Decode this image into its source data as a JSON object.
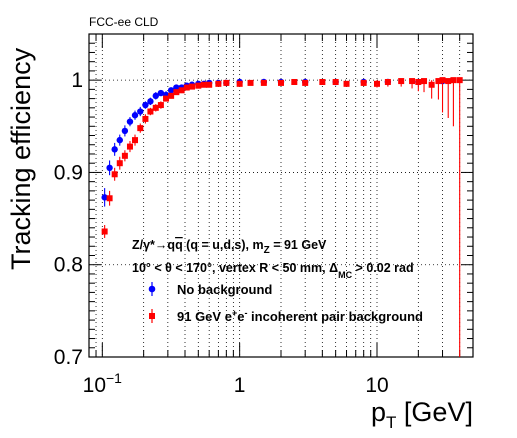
{
  "figure": {
    "experiment_label": "FCC-ee CLD",
    "ylabel": "Tracking efficiency",
    "xlabel": "p_T [GeV]",
    "annotations": [
      "Z/γ*→qq̄ (q = u,d,s), m_Z = 91 GeV",
      "10° < θ < 170°, vertex R < 50 mm, Δ_MC > 0.02 rad"
    ]
  },
  "chart_data": {
    "type": "scatter",
    "x_scale": "log",
    "xlim": [
      0.08,
      50
    ],
    "ylim": [
      0.7,
      1.05
    ],
    "x_ticks": [
      {
        "value": 0.1,
        "label": "10^-1"
      },
      {
        "value": 1,
        "label": "1"
      },
      {
        "value": 10,
        "label": "10"
      }
    ],
    "y_ticks": [
      0.7,
      0.8,
      0.9,
      1.0
    ],
    "y_tick_labels": [
      "0.7",
      "0.8",
      "0.9",
      "1"
    ],
    "grid": true,
    "legend_position": "bottom-center",
    "series": [
      {
        "name": "No background",
        "color": "#0000ff",
        "marker": "circle",
        "x": [
          0.104,
          0.113,
          0.123,
          0.134,
          0.146,
          0.159,
          0.173,
          0.189,
          0.206,
          0.224,
          0.245,
          0.267,
          0.291,
          0.317,
          0.346,
          0.378,
          0.412,
          0.45,
          0.5,
          0.55,
          0.6,
          0.7,
          0.8,
          1.0,
          1.5,
          2.0,
          3.0,
          5.0,
          8.0,
          12.0,
          20.0,
          30.0
        ],
        "y": [
          0.873,
          0.905,
          0.925,
          0.935,
          0.945,
          0.955,
          0.962,
          0.966,
          0.973,
          0.977,
          0.983,
          0.986,
          0.984,
          0.989,
          0.992,
          0.992,
          0.994,
          0.995,
          0.996,
          0.996,
          0.997,
          0.997,
          0.997,
          0.998,
          0.998,
          0.998,
          0.998,
          0.998,
          0.998,
          0.998,
          0.998,
          0.999
        ],
        "err": [
          0.01,
          0.008,
          0.007,
          0.006,
          0.006,
          0.005,
          0.005,
          0.005,
          0.004,
          0.004,
          0.004,
          0.003,
          0.004,
          0.003,
          0.003,
          0.003,
          0.002,
          0.002,
          0.002,
          0.002,
          0.002,
          0.002,
          0.002,
          0.001,
          0.001,
          0.001,
          0.001,
          0.001,
          0.001,
          0.002,
          0.002,
          0.002
        ]
      },
      {
        "name": "91 GeV e+e- incoherent pair background",
        "color": "#ff0000",
        "marker": "square",
        "x": [
          0.104,
          0.113,
          0.123,
          0.134,
          0.146,
          0.159,
          0.173,
          0.189,
          0.206,
          0.224,
          0.245,
          0.267,
          0.291,
          0.317,
          0.346,
          0.378,
          0.412,
          0.45,
          0.5,
          0.55,
          0.6,
          0.7,
          0.8,
          1.0,
          1.2,
          1.5,
          2.0,
          2.5,
          3.0,
          4.0,
          5.0,
          6.0,
          8.0,
          10.0,
          12.0,
          15.0,
          18.0,
          20.0,
          22.0,
          25.0,
          28.0,
          30.0,
          33.0,
          36.0,
          40.0
        ],
        "y": [
          0.836,
          0.872,
          0.898,
          0.91,
          0.918,
          0.928,
          0.935,
          0.948,
          0.958,
          0.966,
          0.97,
          0.973,
          0.98,
          0.983,
          0.987,
          0.989,
          0.992,
          0.993,
          0.994,
          0.995,
          0.995,
          0.996,
          0.997,
          0.996,
          0.997,
          0.997,
          0.997,
          0.998,
          0.997,
          0.998,
          0.998,
          0.996,
          0.997,
          0.996,
          0.998,
          0.999,
          0.999,
          0.998,
          0.999,
          0.995,
          0.999,
          1.0,
          0.999,
          1.0,
          1.0
        ],
        "err": [
          0.007,
          0.008,
          0.007,
          0.007,
          0.006,
          0.006,
          0.006,
          0.005,
          0.005,
          0.004,
          0.004,
          0.004,
          0.003,
          0.003,
          0.003,
          0.003,
          0.002,
          0.002,
          0.002,
          0.002,
          0.002,
          0.002,
          0.002,
          0.002,
          0.002,
          0.002,
          0.002,
          0.002,
          0.002,
          0.002,
          0.003,
          0.003,
          0.003,
          0.004,
          0.005,
          0.006,
          0.008,
          0.01,
          0.012,
          0.015,
          0.02,
          0.035,
          0.04,
          0.05,
          0.3
        ]
      }
    ]
  }
}
